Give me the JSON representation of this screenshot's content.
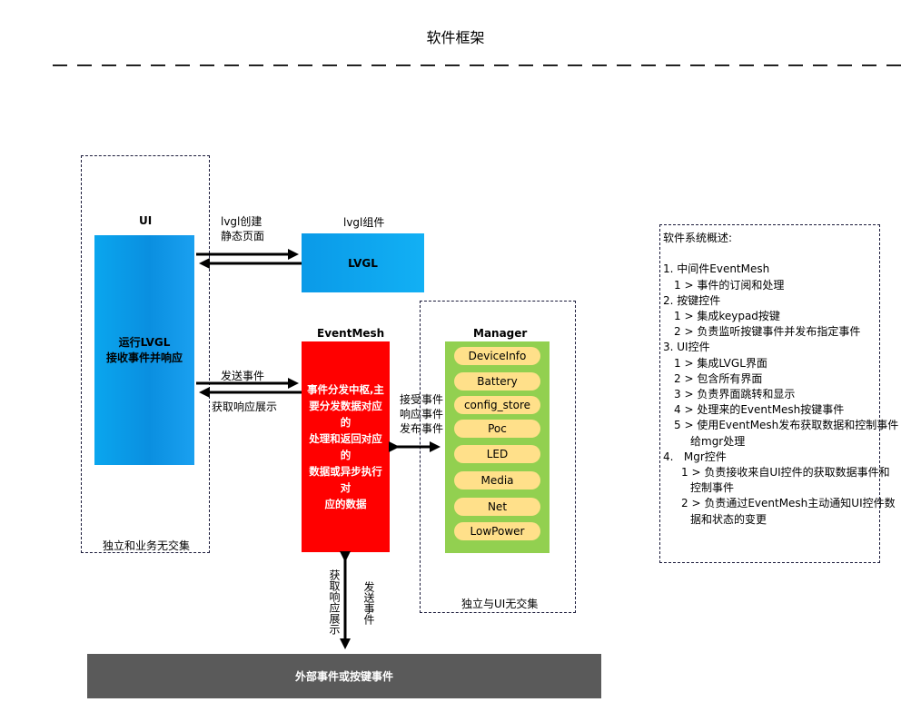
{
  "title": "软件框架",
  "ui": {
    "heading": "UI",
    "body": "运行LVGL\n接收事件并响应",
    "footer": "独立和业务无交集"
  },
  "lvgl": {
    "heading": "lvgl组件",
    "body": "LVGL",
    "arrow_label": "lvgl创建\n静态页面"
  },
  "eventmesh": {
    "heading": "EventMesh",
    "body": "事件分发中枢,主\n要分发数据对应的\n处理和返回对应的\n数据或异步执行对\n应的数据",
    "send_label": "发送事件",
    "get_label": "获取响应展示"
  },
  "manager": {
    "heading": "Manager",
    "items": [
      "DeviceInfo",
      "Battery",
      "config_store",
      "Poc",
      "LED",
      "Media",
      "Net",
      "LowPower"
    ],
    "arrow_label": "接受事件\n响应事件\n发布事件",
    "footer": "独立与UI无交集"
  },
  "external": {
    "body": "外部事件或按键事件",
    "left_label": "获取响应展示",
    "right_label": "发送事件"
  },
  "overview": {
    "lines": [
      "软件系统概述:",
      "",
      "1. 中间件EventMesh",
      "1 > 事件的订阅和处理",
      "2. 按键控件",
      "1 > 集成keypad按键",
      "2 > 负责监听按键事件并发布指定事件",
      "3. UI控件",
      "1 > 集成LVGL界面",
      "2 > 包含所有界面",
      "3 > 负责界面跳转和显示",
      "4 > 处理来的EventMesh按键事件",
      "5 > 使用EventMesh发布获取数据和控制事件",
      "给mgr处理",
      "4.   Mgr控件",
      "1 > 负责接收来自UI控件的获取数据事件和",
      "控制事件",
      "2 > 负责通过EventMesh主动通知UI控件数",
      "据和状态的变更"
    ]
  }
}
